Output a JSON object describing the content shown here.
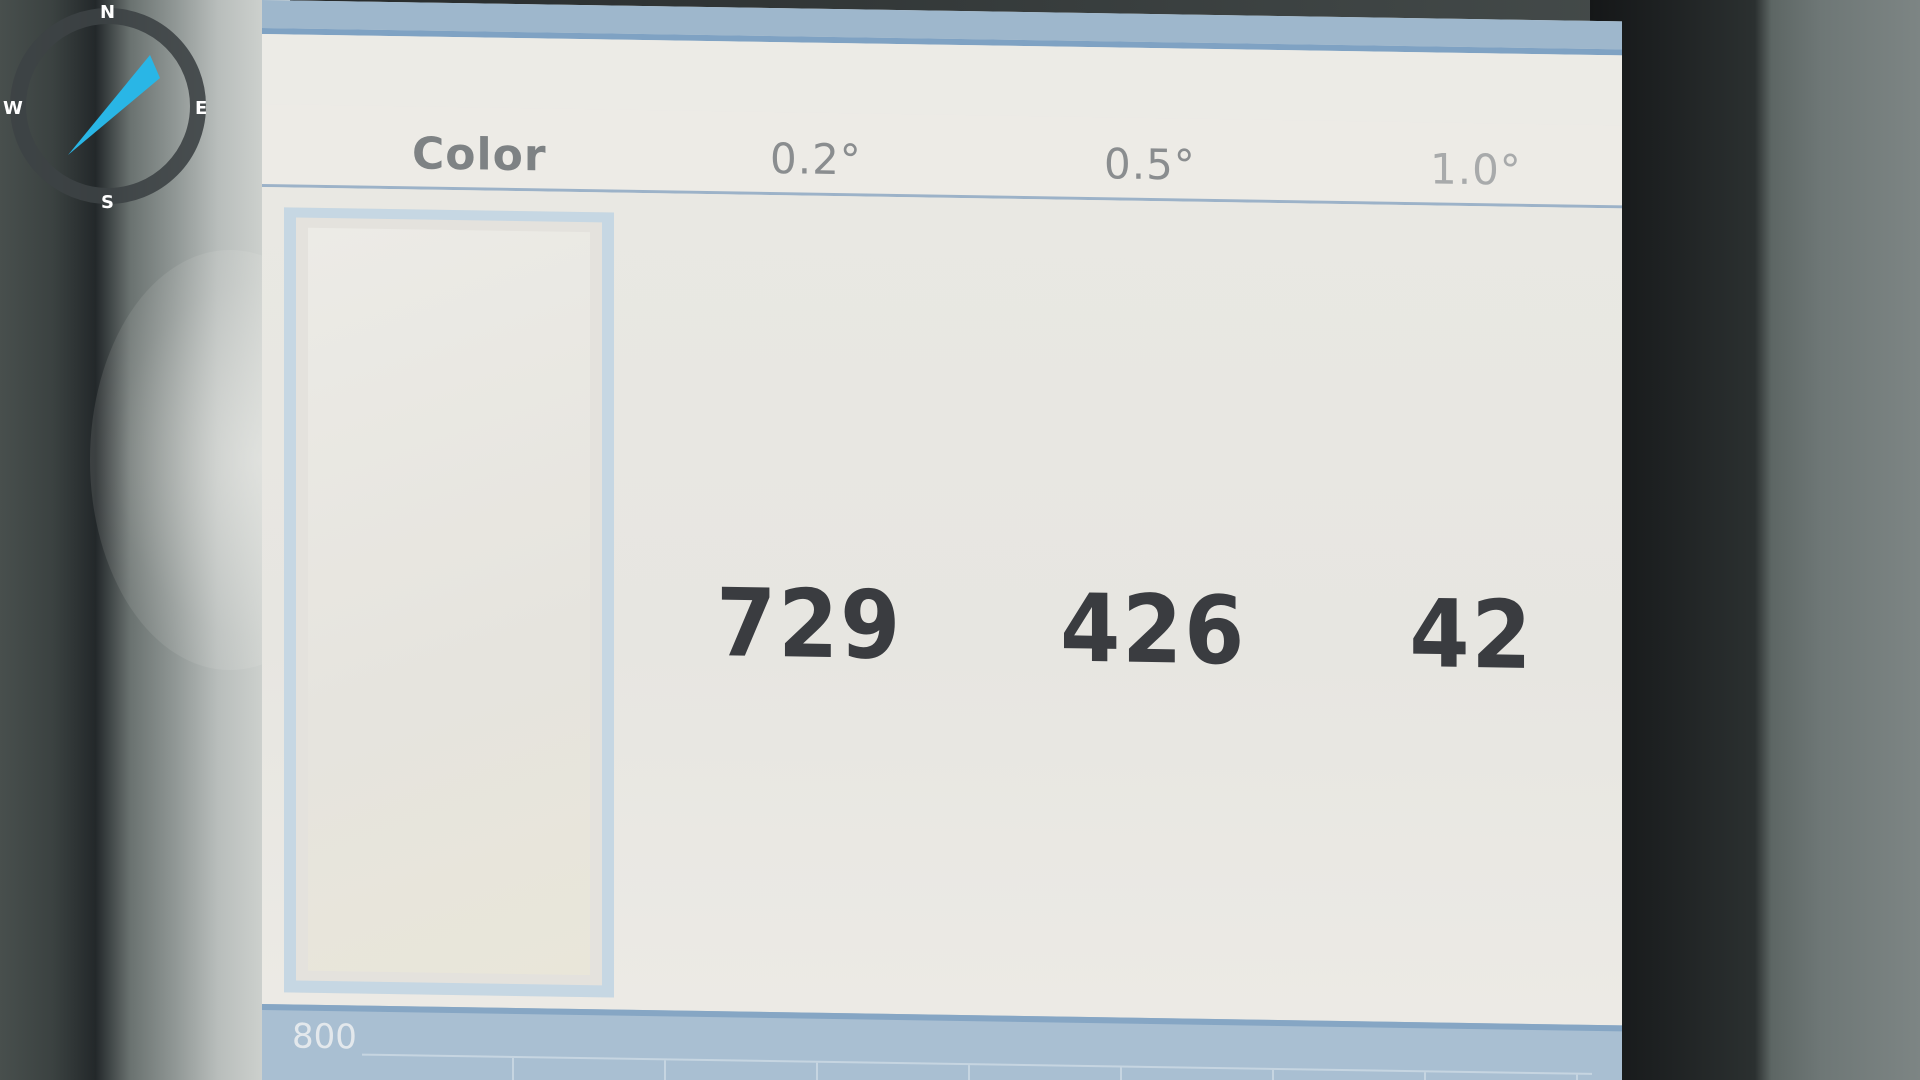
{
  "compass": {
    "north": "N",
    "south": "S",
    "west": "W",
    "east": "E",
    "needle_color": "#29b6e6"
  },
  "table": {
    "header": {
      "color": "Color",
      "col_02": "0.2°",
      "col_05": "0.5°",
      "col_10": "1.0°"
    },
    "values": {
      "col_02": "729",
      "col_05": "426",
      "col_10": "42"
    }
  },
  "bottom_chart": {
    "label": "800"
  },
  "colors": {
    "screen_bg": "#e8e7e2",
    "accent_blue": "#9eb7cc",
    "value_text": "#3a3c40"
  }
}
